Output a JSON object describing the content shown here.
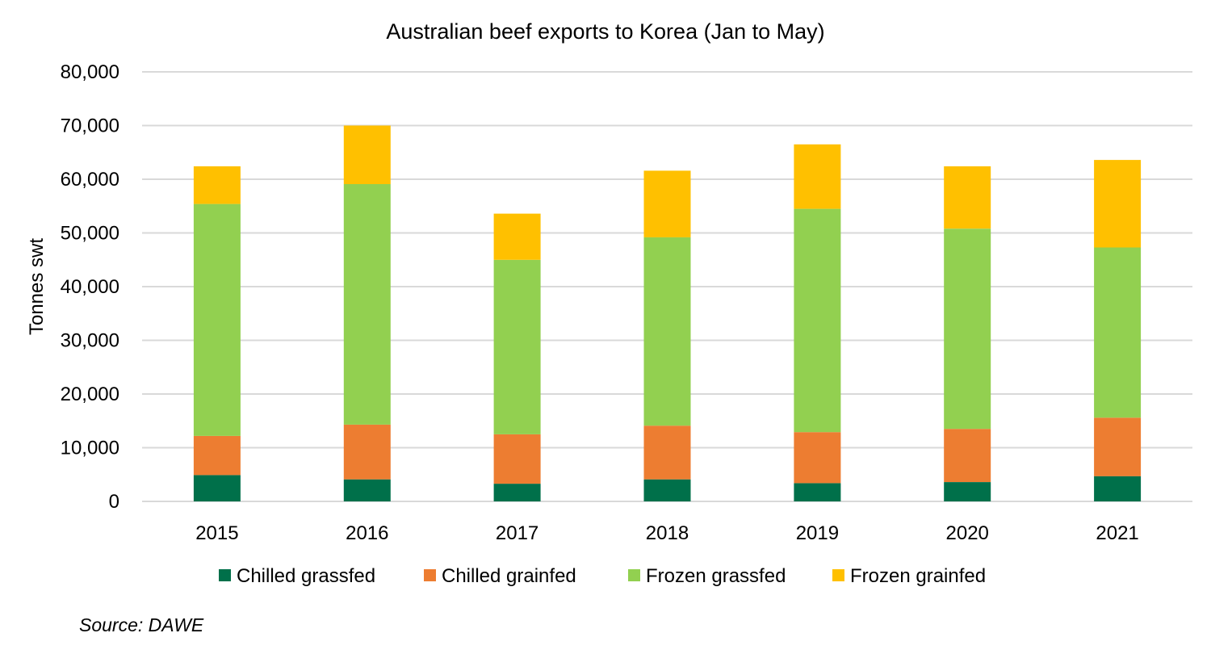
{
  "source": "Source: DAWE",
  "chart_data": {
    "type": "bar",
    "stacked": true,
    "title": "Australian beef exports to Korea (Jan to May)",
    "xlabel": "",
    "ylabel": "Tonnes swt",
    "ylim": [
      0,
      80000
    ],
    "yticks": [
      "0",
      "10,000",
      "20,000",
      "30,000",
      "40,000",
      "50,000",
      "60,000",
      "70,000",
      "80,000"
    ],
    "grid": true,
    "legend_position": "bottom",
    "categories": [
      "2015",
      "2016",
      "2017",
      "2018",
      "2019",
      "2020",
      "2021"
    ],
    "series": [
      {
        "name": "Chilled grassfed",
        "color": "#00704A",
        "values": [
          4900,
          4100,
          3300,
          4100,
          3400,
          3600,
          4700
        ]
      },
      {
        "name": "Chilled grainfed",
        "color": "#ED7D31",
        "values": [
          7300,
          10200,
          9200,
          10000,
          9500,
          9900,
          10900
        ]
      },
      {
        "name": "Frozen grassfed",
        "color": "#92D050",
        "values": [
          43200,
          44800,
          32500,
          35100,
          41600,
          37300,
          31700
        ]
      },
      {
        "name": "Frozen grainfed",
        "color": "#FFC000",
        "values": [
          7000,
          10900,
          8600,
          12400,
          12000,
          11600,
          16300
        ]
      }
    ]
  }
}
